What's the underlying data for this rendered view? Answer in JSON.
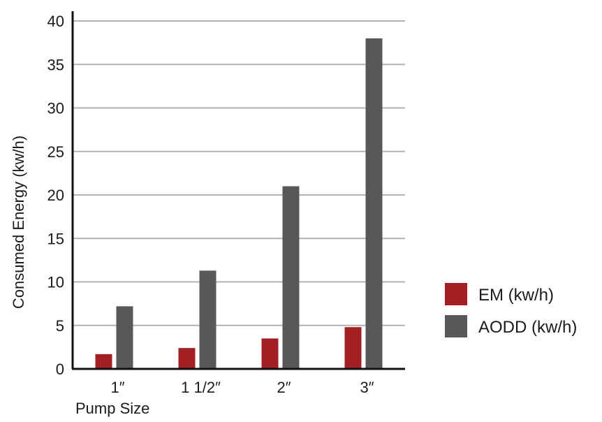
{
  "chart_data": {
    "type": "bar",
    "categories": [
      "1″",
      "1 1/2″",
      "2″",
      "3″"
    ],
    "series": [
      {
        "name": "EM (kw/h)",
        "values": [
          1.7,
          2.4,
          3.5,
          4.8
        ],
        "color": "#a41f24"
      },
      {
        "name": "AODD (kw/h)",
        "values": [
          7.2,
          11.3,
          21.0,
          38.0
        ],
        "color": "#58585a"
      }
    ],
    "xlabel": "Pump Size",
    "ylabel": "Consumed Energy (kw/h)",
    "ylim": [
      0,
      40
    ],
    "yticks": [
      "0",
      "5",
      "10",
      "15",
      "20",
      "25",
      "30",
      "35",
      "40"
    ],
    "grid": true,
    "legend_position": "right"
  }
}
